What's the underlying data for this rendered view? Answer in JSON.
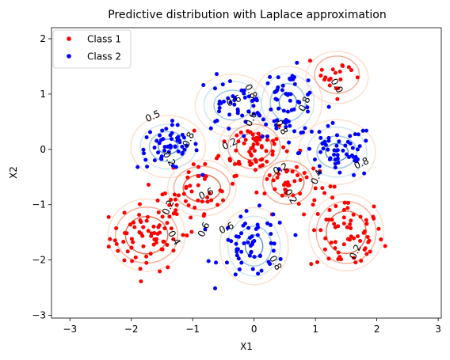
{
  "chart_data": {
    "type": "scatter",
    "title": "Predictive distribution with Laplace approximation",
    "xlabel": "X1",
    "ylabel": "X2",
    "xlim": [
      -3.3,
      3.05
    ],
    "ylim": [
      -3.05,
      2.2
    ],
    "xticks": [
      -3,
      -2,
      -1,
      0,
      1,
      2,
      3
    ],
    "yticks": [
      -3,
      -2,
      -1,
      0,
      1,
      2
    ],
    "grid": false,
    "legend_position": "top-left",
    "series": [
      {
        "name": "Class 1",
        "color": "#ff0000",
        "clusters": [
          {
            "center": [
              -1.75,
              -1.6
            ],
            "spread": [
              0.3,
              0.3
            ],
            "count": 65
          },
          {
            "center": [
              1.5,
              -1.55
            ],
            "spread": [
              0.3,
              0.35
            ],
            "count": 65
          },
          {
            "center": [
              0.0,
              0.05
            ],
            "spread": [
              0.28,
              0.25
            ],
            "count": 55
          },
          {
            "center": [
              0.55,
              -0.6
            ],
            "spread": [
              0.25,
              0.25
            ],
            "count": 40
          },
          {
            "center": [
              -0.85,
              -0.7
            ],
            "spread": [
              0.3,
              0.25
            ],
            "count": 40
          },
          {
            "center": [
              1.35,
              1.35
            ],
            "spread": [
              0.25,
              0.2
            ],
            "count": 20
          },
          {
            "center": [
              -1.3,
              -1.2
            ],
            "spread": [
              0.3,
              0.2
            ],
            "count": 15
          }
        ]
      },
      {
        "name": "Class 2",
        "color": "#0000ff",
        "clusters": [
          {
            "center": [
              -1.4,
              0.05
            ],
            "spread": [
              0.25,
              0.2
            ],
            "count": 55
          },
          {
            "center": [
              1.35,
              -0.05
            ],
            "spread": [
              0.3,
              0.25
            ],
            "count": 60
          },
          {
            "center": [
              0.0,
              -1.75
            ],
            "spread": [
              0.28,
              0.3
            ],
            "count": 60
          },
          {
            "center": [
              0.55,
              0.85
            ],
            "spread": [
              0.25,
              0.3
            ],
            "count": 55
          },
          {
            "center": [
              -0.35,
              0.8
            ],
            "spread": [
              0.3,
              0.25
            ],
            "count": 45
          }
        ]
      }
    ],
    "contour_labels": [
      "0.5",
      "0.2",
      "0.8",
      "0.6",
      "0.4"
    ],
    "blob_groups": [
      {
        "color": "#fde0d0",
        "blobs": [
          [
            -1.75,
            -1.55,
            0.62,
            0.58
          ],
          [
            1.5,
            -1.5,
            0.6,
            0.62
          ],
          [
            0.0,
            0.05,
            0.56,
            0.5
          ],
          [
            -1.4,
            0.05,
            0.6,
            0.5
          ],
          [
            1.35,
            -0.05,
            0.62,
            0.52
          ],
          [
            0.0,
            -1.75,
            0.55,
            0.62
          ],
          [
            0.55,
            0.85,
            0.55,
            0.58
          ],
          [
            -0.35,
            0.8,
            0.6,
            0.5
          ],
          [
            1.35,
            1.3,
            0.5,
            0.42
          ],
          [
            -0.85,
            -0.7,
            0.55,
            0.45
          ]
        ]
      },
      {
        "color": "#d2e6f2",
        "blobs": [
          [
            -1.4,
            0.05,
            0.45,
            0.36
          ],
          [
            1.35,
            -0.05,
            0.48,
            0.4
          ],
          [
            0.0,
            -1.75,
            0.42,
            0.48
          ],
          [
            0.55,
            0.85,
            0.42,
            0.46
          ],
          [
            -0.35,
            0.8,
            0.46,
            0.38
          ]
        ]
      },
      {
        "color": "#f5b09a",
        "blobs": [
          [
            -1.75,
            -1.55,
            0.5,
            0.45
          ],
          [
            1.5,
            -1.5,
            0.48,
            0.5
          ],
          [
            0.0,
            0.05,
            0.42,
            0.36
          ],
          [
            0.55,
            -0.6,
            0.4,
            0.35
          ],
          [
            -0.85,
            -0.7,
            0.45,
            0.35
          ],
          [
            1.35,
            1.35,
            0.36,
            0.3
          ]
        ]
      },
      {
        "color": "#9ec9e2",
        "blobs": [
          [
            -1.4,
            0.05,
            0.3,
            0.24
          ],
          [
            1.35,
            -0.05,
            0.32,
            0.26
          ],
          [
            0.0,
            -1.75,
            0.28,
            0.32
          ],
          [
            0.55,
            0.85,
            0.28,
            0.3
          ],
          [
            -0.35,
            0.8,
            0.3,
            0.24
          ]
        ]
      },
      {
        "color": "#e67556",
        "blobs": [
          [
            -1.75,
            -1.55,
            0.34,
            0.3
          ],
          [
            1.5,
            -1.5,
            0.32,
            0.34
          ],
          [
            0.0,
            0.05,
            0.28,
            0.22
          ],
          [
            0.55,
            -0.6,
            0.26,
            0.22
          ],
          [
            -0.85,
            -0.7,
            0.3,
            0.22
          ]
        ]
      },
      {
        "color": "#5b9bc8",
        "blobs": [
          [
            -1.4,
            0.05,
            0.16,
            0.12
          ],
          [
            1.35,
            -0.05,
            0.18,
            0.14
          ],
          [
            0.0,
            -1.75,
            0.14,
            0.18
          ],
          [
            0.55,
            0.85,
            0.14,
            0.16
          ]
        ]
      }
    ],
    "label_positions": [
      {
        "text": "0.5",
        "x": -1.65,
        "y": 0.6
      },
      {
        "text": "0.2",
        "x": -1.38,
        "y": -0.17
      },
      {
        "text": "0.8",
        "x": -1.07,
        "y": 0.18
      },
      {
        "text": "0.6",
        "x": -0.33,
        "y": 0.88
      },
      {
        "text": "0.8",
        "x": -0.05,
        "y": 1.05
      },
      {
        "text": "0.6",
        "x": -0.05,
        "y": 0.55
      },
      {
        "text": "0.2",
        "x": -0.4,
        "y": 0.1
      },
      {
        "text": "0.8",
        "x": 0.45,
        "y": 0.4
      },
      {
        "text": "0.8",
        "x": 0.82,
        "y": 0.82
      },
      {
        "text": "0.2",
        "x": 0.43,
        "y": -0.35
      },
      {
        "text": "0.2",
        "x": 0.6,
        "y": -0.85
      },
      {
        "text": "0.4",
        "x": 1.02,
        "y": -0.5
      },
      {
        "text": "0.8",
        "x": 1.75,
        "y": -0.25
      },
      {
        "text": "0.0",
        "x": 1.35,
        "y": 1.15
      },
      {
        "text": "0.2",
        "x": -1.4,
        "y": -1.05
      },
      {
        "text": "0.6",
        "x": -0.78,
        "y": -0.8
      },
      {
        "text": "0.4",
        "x": -1.3,
        "y": -1.6
      },
      {
        "text": "0.6",
        "x": -0.82,
        "y": -1.45
      },
      {
        "text": "0.6",
        "x": -0.45,
        "y": -1.42
      },
      {
        "text": "0.8",
        "x": 0.35,
        "y": -2.05
      },
      {
        "text": "0.2",
        "x": 1.65,
        "y": -1.85
      }
    ]
  }
}
